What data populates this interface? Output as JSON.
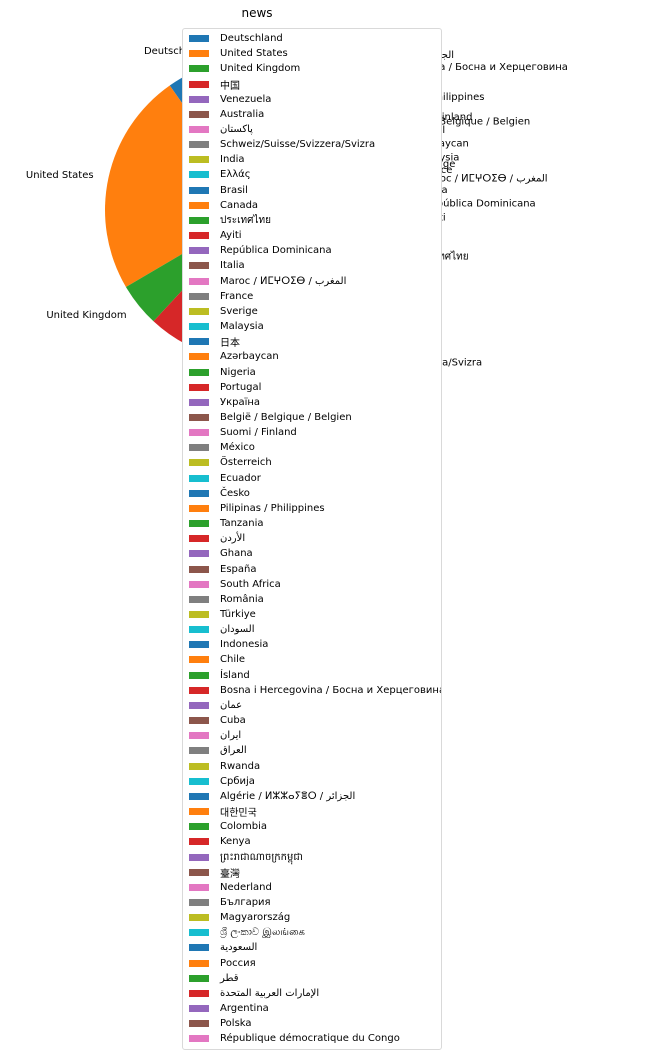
{
  "colors": [
    "#1f77b4",
    "#ff7f0e",
    "#2ca02c",
    "#d62728",
    "#9467bd",
    "#8c564b",
    "#e377c2",
    "#7f7f7f",
    "#bcbd22",
    "#17becf"
  ],
  "chart_data": {
    "type": "pie",
    "title": "news",
    "start_angle_deg": 90,
    "legend_location": "left-center overlapping the pie",
    "slices": [
      {
        "label": "Deutschland",
        "value": 8.0,
        "color": "#1f77b4"
      },
      {
        "label": "United States",
        "value": 19.5,
        "color": "#ff7f0e"
      },
      {
        "label": "United Kingdom",
        "value": 3.8,
        "color": "#2ca02c"
      },
      {
        "label": "中国",
        "value": 13.7,
        "color": "#d62728"
      },
      {
        "label": "Venezuela",
        "value": 0.5,
        "color": "#9467bd"
      },
      {
        "label": "Australia",
        "value": 0.5,
        "color": "#8c564b"
      },
      {
        "label": "پاکستان",
        "value": 0.5,
        "color": "#e377c2"
      },
      {
        "label": "Schweiz/Suisse/Svizzera/Svizra",
        "value": 0.5,
        "color": "#7f7f7f"
      },
      {
        "label": "India",
        "value": 1.6,
        "color": "#bcbd22"
      },
      {
        "label": "Ελλάς",
        "value": 3.5,
        "color": "#17becf"
      },
      {
        "label": "Brasil",
        "value": 2.4,
        "color": "#1f77b4"
      },
      {
        "label": "Canada",
        "value": 0.9,
        "color": "#ff7f0e"
      },
      {
        "label": "ประเทศไทย",
        "value": 5.2,
        "color": "#2ca02c"
      },
      {
        "label": "Ayiti",
        "value": 1.0,
        "color": "#d62728"
      },
      {
        "label": "República Dominicana",
        "value": 1.2,
        "color": "#9467bd"
      },
      {
        "label": "Italia",
        "value": 0.9,
        "color": "#8c564b"
      },
      {
        "label": "Maroc / ⵍⵎⵖⵔⵉⴱ / المغرب",
        "value": 0.9,
        "color": "#e377c2"
      },
      {
        "label": "France",
        "value": 0.5,
        "color": "#7f7f7f"
      },
      {
        "label": "Sverige",
        "value": 0.5,
        "color": "#bcbd22"
      },
      {
        "label": "Malaysia",
        "value": 0.5,
        "color": "#17becf"
      },
      {
        "label": "日本",
        "value": 0.5,
        "color": "#1f77b4"
      },
      {
        "label": "Azərbaycan",
        "value": 0.9,
        "color": "#ff7f0e"
      },
      {
        "label": "Nigeria",
        "value": 0.5,
        "color": "#2ca02c"
      },
      {
        "label": "Portugal",
        "value": 0.4,
        "color": "#d62728"
      },
      {
        "label": "Україна",
        "value": 0.4,
        "color": "#9467bd"
      },
      {
        "label": "België / Belgique / Belgien",
        "value": 0.4,
        "color": "#8c564b"
      },
      {
        "label": "Suomi / Finland",
        "value": 0.4,
        "color": "#e377c2"
      },
      {
        "label": "México",
        "value": 0.4,
        "color": "#7f7f7f"
      },
      {
        "label": "Österreich",
        "value": 0.4,
        "color": "#bcbd22"
      },
      {
        "label": "Ecuador",
        "value": 0.4,
        "color": "#17becf"
      },
      {
        "label": "Česko",
        "value": 0.4,
        "color": "#1f77b4"
      },
      {
        "label": "Pilipinas / Philippines",
        "value": 0.4,
        "color": "#ff7f0e"
      },
      {
        "label": "Tanzania",
        "value": 0.4,
        "color": "#2ca02c"
      },
      {
        "label": "الأردن",
        "value": 0.3,
        "color": "#d62728"
      },
      {
        "label": "Ghana",
        "value": 0.3,
        "color": "#9467bd"
      },
      {
        "label": "España",
        "value": 0.3,
        "color": "#8c564b"
      },
      {
        "label": "South Africa",
        "value": 0.3,
        "color": "#e377c2"
      },
      {
        "label": "România",
        "value": 0.3,
        "color": "#7f7f7f"
      },
      {
        "label": "Türkiye",
        "value": 0.3,
        "color": "#bcbd22"
      },
      {
        "label": "السودان",
        "value": 0.3,
        "color": "#17becf"
      },
      {
        "label": "Indonesia",
        "value": 0.3,
        "color": "#1f77b4"
      },
      {
        "label": "Chile",
        "value": 0.3,
        "color": "#ff7f0e"
      },
      {
        "label": "Ísland",
        "value": 0.3,
        "color": "#2ca02c"
      },
      {
        "label": "Bosna i Hercegovina / Босна и Херцеговина",
        "value": 0.3,
        "color": "#d62728"
      },
      {
        "label": "عمان",
        "value": 0.3,
        "color": "#9467bd"
      },
      {
        "label": "Cuba",
        "value": 0.3,
        "color": "#8c564b"
      },
      {
        "label": "ایران",
        "value": 0.3,
        "color": "#e377c2"
      },
      {
        "label": "العراق",
        "value": 0.3,
        "color": "#7f7f7f"
      },
      {
        "label": "Rwanda",
        "value": 0.3,
        "color": "#bcbd22"
      },
      {
        "label": "Србија",
        "value": 0.3,
        "color": "#17becf"
      },
      {
        "label": "Algérie / ⵍⵣⵣⴰⵢⴻⵔ / الجزائر",
        "value": 0.3,
        "color": "#1f77b4"
      },
      {
        "label": "대한민국",
        "value": 0.3,
        "color": "#ff7f0e"
      },
      {
        "label": "Colombia",
        "value": 0.3,
        "color": "#2ca02c"
      },
      {
        "label": "Kenya",
        "value": 0.3,
        "color": "#d62728"
      },
      {
        "label": "ព្រះរាជាណាចក្រកម្ពុជា",
        "value": 0.3,
        "color": "#9467bd"
      },
      {
        "label": "臺灣",
        "value": 0.3,
        "color": "#8c564b"
      },
      {
        "label": "Nederland",
        "value": 0.3,
        "color": "#e377c2"
      },
      {
        "label": "България",
        "value": 0.3,
        "color": "#7f7f7f"
      },
      {
        "label": "Magyarország",
        "value": 0.3,
        "color": "#bcbd22"
      },
      {
        "label": "ශ්‍රී ලංකාව இலங்கை",
        "value": 0.3,
        "color": "#17becf"
      },
      {
        "label": "السعودية",
        "value": 0.3,
        "color": "#1f77b4"
      },
      {
        "label": "Россия",
        "value": 0.3,
        "color": "#ff7f0e"
      },
      {
        "label": "قطر",
        "value": 0.3,
        "color": "#2ca02c"
      },
      {
        "label": "الإمارات العربية المتحدة",
        "value": 0.3,
        "color": "#d62728"
      },
      {
        "label": "Argentina",
        "value": 0.3,
        "color": "#9467bd"
      },
      {
        "label": "Polska",
        "value": 0.3,
        "color": "#8c564b"
      },
      {
        "label": "République démocratique du Congo",
        "value": 0.3,
        "color": "#e377c2"
      }
    ]
  }
}
